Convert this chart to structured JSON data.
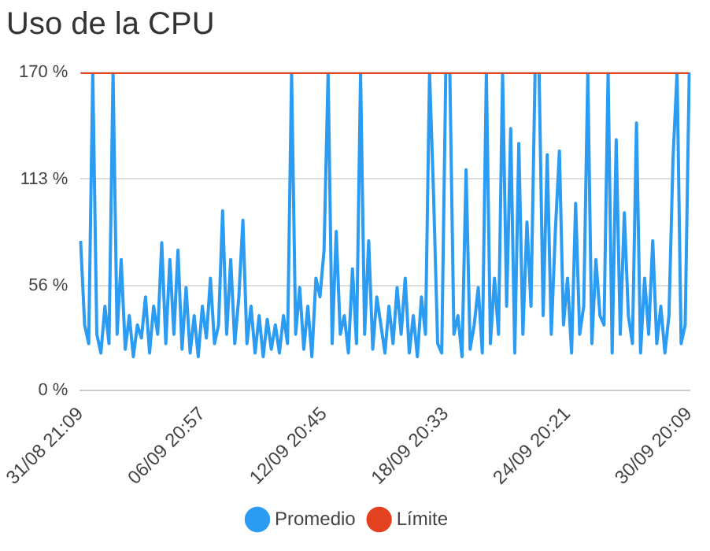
{
  "chart_data": {
    "type": "line",
    "title": "Uso de la CPU",
    "categories": [
      "31/08 21:09",
      null,
      null,
      null,
      null,
      null,
      null,
      null,
      null,
      null,
      null,
      null,
      null,
      null,
      null,
      null,
      null,
      null,
      null,
      null,
      null,
      null,
      null,
      null,
      null,
      null,
      null,
      null,
      null,
      null,
      "06/09 20:57",
      null,
      null,
      null,
      null,
      null,
      null,
      null,
      null,
      null,
      null,
      null,
      null,
      null,
      null,
      null,
      null,
      null,
      null,
      null,
      null,
      null,
      null,
      null,
      null,
      null,
      null,
      null,
      null,
      null,
      "12/09 20:45",
      null,
      null,
      null,
      null,
      null,
      null,
      null,
      null,
      null,
      null,
      null,
      null,
      null,
      null,
      null,
      null,
      null,
      null,
      null,
      null,
      null,
      null,
      null,
      null,
      null,
      null,
      null,
      null,
      null,
      "18/09 20:33",
      null,
      null,
      null,
      null,
      null,
      null,
      null,
      null,
      null,
      null,
      null,
      null,
      null,
      null,
      null,
      null,
      null,
      null,
      null,
      null,
      null,
      null,
      null,
      null,
      null,
      null,
      null,
      null,
      null,
      "24/09 20:21",
      null,
      null,
      null,
      null,
      null,
      null,
      null,
      null,
      null,
      null,
      null,
      null,
      null,
      null,
      null,
      null,
      null,
      null,
      null,
      null,
      null,
      null,
      null,
      null,
      null,
      null,
      null,
      null,
      null,
      "30/09 20:09"
    ],
    "series": [
      {
        "name": "Promedio",
        "color": "#2b9cf2",
        "values": [
          80,
          35,
          25,
          170,
          30,
          20,
          45,
          25,
          170,
          30,
          70,
          22,
          40,
          18,
          35,
          28,
          50,
          20,
          45,
          30,
          79,
          25,
          70,
          30,
          75,
          22,
          55,
          20,
          40,
          18,
          45,
          28,
          60,
          25,
          35,
          96,
          30,
          70,
          25,
          50,
          91,
          25,
          45,
          20,
          40,
          18,
          38,
          22,
          35,
          20,
          40,
          25,
          170,
          30,
          55,
          22,
          45,
          18,
          60,
          50,
          75,
          170,
          25,
          85,
          30,
          40,
          20,
          65,
          25,
          170,
          30,
          80,
          22,
          50,
          35,
          20,
          45,
          25,
          55,
          30,
          60,
          20,
          40,
          18,
          50,
          30,
          170,
          104,
          25,
          20,
          170,
          170,
          30,
          40,
          18,
          118,
          22,
          35,
          55,
          20,
          170,
          25,
          60,
          30,
          170,
          45,
          140,
          20,
          132,
          30,
          90,
          45,
          170,
          170,
          40,
          126,
          30,
          85,
          128,
          35,
          60,
          20,
          100,
          30,
          45,
          170,
          25,
          70,
          40,
          35,
          170,
          20,
          134,
          30,
          95,
          40,
          25,
          143,
          20,
          60,
          30,
          80,
          25,
          45,
          20,
          40,
          124,
          170,
          25,
          35,
          170
        ]
      },
      {
        "name": "Límite",
        "color": "#e2421f",
        "values": [
          170,
          170,
          170,
          170,
          170,
          170,
          170,
          170,
          170,
          170,
          170,
          170,
          170,
          170,
          170,
          170,
          170,
          170,
          170,
          170,
          170,
          170,
          170,
          170,
          170,
          170,
          170,
          170,
          170,
          170,
          170,
          170,
          170,
          170,
          170,
          170,
          170,
          170,
          170,
          170,
          170,
          170,
          170,
          170,
          170,
          170,
          170,
          170,
          170,
          170,
          170,
          170,
          170,
          170,
          170,
          170,
          170,
          170,
          170,
          170,
          170,
          170,
          170,
          170,
          170,
          170,
          170,
          170,
          170,
          170,
          170,
          170,
          170,
          170,
          170,
          170,
          170,
          170,
          170,
          170,
          170,
          170,
          170,
          170,
          170,
          170,
          170,
          170,
          170,
          170,
          170,
          170,
          170,
          170,
          170,
          170,
          170,
          170,
          170,
          170,
          170,
          170,
          170,
          170,
          170,
          170,
          170,
          170,
          170,
          170,
          170,
          170,
          170,
          170,
          170,
          170,
          170,
          170,
          170,
          170,
          170,
          170,
          170,
          170,
          170,
          170,
          170,
          170,
          170,
          170,
          170,
          170,
          170,
          170,
          170,
          170,
          170,
          170,
          170,
          170,
          170,
          170,
          170,
          170,
          170,
          170,
          170,
          170,
          170,
          170,
          170
        ]
      }
    ],
    "ylim": [
      0,
      170
    ],
    "yticks": [
      {
        "value": 0,
        "label": "0 %"
      },
      {
        "value": 56,
        "label": "56 %"
      },
      {
        "value": 113,
        "label": "113 %"
      },
      {
        "value": 170,
        "label": "170 %"
      }
    ],
    "grid": "y",
    "legend": "bottom",
    "marker": "none",
    "line_style": "solid"
  }
}
